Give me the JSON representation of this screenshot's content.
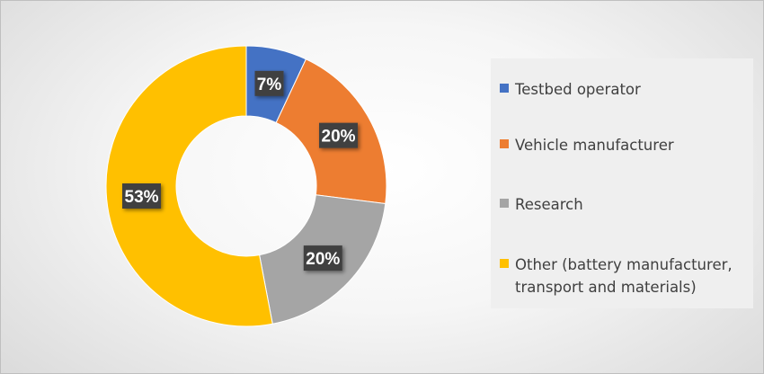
{
  "chart_data": {
    "type": "pie",
    "variant": "donut",
    "title": "",
    "categories": [
      "Testbed operator",
      "Vehicle manufacturer",
      "Research",
      "Other (battery manufacturer, transport and materials)"
    ],
    "values": [
      7,
      20,
      20,
      53
    ],
    "labels": [
      "7%",
      "20%",
      "20%",
      "53%"
    ],
    "colors": [
      "#4472c4",
      "#ed7d31",
      "#a5a5a5",
      "#ffc000"
    ],
    "legend_position": "right"
  },
  "legend": {
    "items": [
      {
        "label": "Testbed operator",
        "color": "#4472c4"
      },
      {
        "label": "Vehicle manufacturer",
        "color": "#ed7d31"
      },
      {
        "label": "Research",
        "color": "#a5a5a5"
      },
      {
        "label": "Other (battery manufacturer, transport and materials)",
        "color": "#ffc000"
      }
    ]
  }
}
